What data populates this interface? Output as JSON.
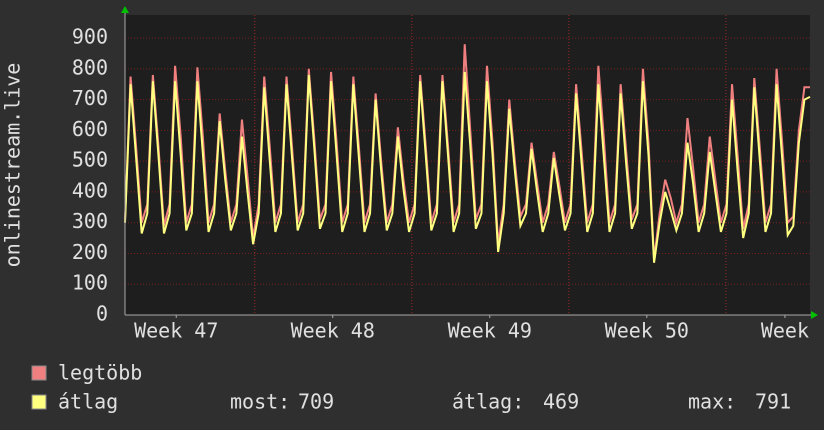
{
  "chart_data": {
    "type": "line",
    "ylabel": "onlinestream.live",
    "x": [
      0,
      1,
      2,
      3,
      4,
      5,
      6,
      7,
      8,
      9,
      10,
      11,
      12,
      13,
      14,
      15,
      16,
      17,
      18,
      19,
      20,
      21,
      22,
      23,
      24,
      25,
      26,
      27,
      28,
      29,
      30,
      31,
      32,
      33,
      34,
      35,
      36,
      37,
      38,
      39,
      40,
      41,
      42,
      43,
      44,
      45,
      46,
      47,
      48,
      49,
      50,
      51,
      52,
      53,
      54,
      55,
      56,
      57,
      58,
      59,
      60,
      61,
      62,
      63,
      64,
      65,
      66,
      67,
      68,
      69,
      70,
      71,
      72,
      73,
      74,
      75,
      76,
      77,
      78,
      79,
      80,
      81,
      82,
      83,
      84,
      85,
      86,
      87,
      88,
      89,
      90,
      91,
      92,
      93,
      94,
      95,
      96,
      97,
      98,
      99,
      100,
      101,
      102,
      103,
      104,
      105,
      106,
      107,
      108,
      109,
      110,
      111,
      112,
      113,
      114,
      115,
      116,
      117,
      118,
      119,
      120,
      121,
      122,
      123
    ],
    "xlim": [
      0,
      123
    ],
    "xticks": [
      {
        "value": 9.2,
        "label": "Week 47"
      },
      {
        "value": 37.3,
        "label": "Week 48"
      },
      {
        "value": 65.5,
        "label": "Week 49"
      },
      {
        "value": 93.7,
        "label": "Week 50"
      },
      {
        "value": 118.5,
        "label": "Week"
      }
    ],
    "xgrid_major": [
      23.3,
      51.5,
      79.7,
      107.9
    ],
    "ylim": [
      0,
      975
    ],
    "yticks": [
      0,
      100,
      200,
      300,
      400,
      500,
      600,
      700,
      800,
      900
    ],
    "grid": true,
    "series": [
      {
        "name": "legtöbb",
        "color": "#f08080",
        "values": [
          310,
          775,
          545,
          300,
          360,
          780,
          550,
          290,
          360,
          810,
          580,
          300,
          360,
          805,
          575,
          300,
          360,
          655,
          470,
          300,
          360,
          635,
          450,
          250,
          360,
          775,
          545,
          300,
          360,
          775,
          545,
          300,
          360,
          800,
          570,
          310,
          360,
          790,
          560,
          300,
          360,
          775,
          545,
          300,
          360,
          720,
          500,
          300,
          360,
          610,
          440,
          300,
          360,
          780,
          550,
          300,
          360,
          780,
          550,
          300,
          360,
          880,
          600,
          310,
          360,
          810,
          560,
          230,
          360,
          700,
          500,
          320,
          360,
          560,
          430,
          300,
          360,
          530,
          420,
          300,
          360,
          750,
          530,
          300,
          360,
          810,
          570,
          300,
          360,
          750,
          530,
          310,
          360,
          800,
          560,
          180,
          330,
          440,
          380,
          300,
          360,
          640,
          480,
          300,
          360,
          580,
          440,
          300,
          360,
          750,
          520,
          280,
          360,
          770,
          540,
          300,
          360,
          800,
          560,
          300,
          320,
          600,
          740,
          740
        ]
      },
      {
        "name": "átlag",
        "color": "#ffff80",
        "values": [
          300,
          750,
          510,
          265,
          330,
          760,
          520,
          265,
          330,
          760,
          520,
          275,
          330,
          760,
          520,
          270,
          330,
          630,
          440,
          275,
          330,
          580,
          400,
          230,
          330,
          740,
          500,
          270,
          330,
          750,
          510,
          275,
          330,
          780,
          540,
          280,
          330,
          760,
          520,
          270,
          330,
          750,
          510,
          270,
          330,
          700,
          470,
          275,
          330,
          580,
          410,
          270,
          330,
          760,
          520,
          275,
          330,
          760,
          520,
          270,
          330,
          790,
          550,
          280,
          330,
          760,
          520,
          205,
          330,
          670,
          470,
          290,
          330,
          540,
          400,
          270,
          330,
          510,
          390,
          275,
          330,
          720,
          490,
          270,
          330,
          750,
          510,
          270,
          330,
          720,
          490,
          280,
          330,
          760,
          520,
          170,
          300,
          400,
          340,
          275,
          330,
          560,
          430,
          270,
          330,
          530,
          400,
          270,
          330,
          700,
          470,
          250,
          330,
          740,
          500,
          270,
          330,
          750,
          510,
          260,
          290,
          560,
          700,
          709
        ]
      }
    ],
    "stats": [
      {
        "label": "most:",
        "value": 709
      },
      {
        "label": "átlag:",
        "value": 469
      },
      {
        "label": "max:",
        "value": 791
      }
    ]
  }
}
